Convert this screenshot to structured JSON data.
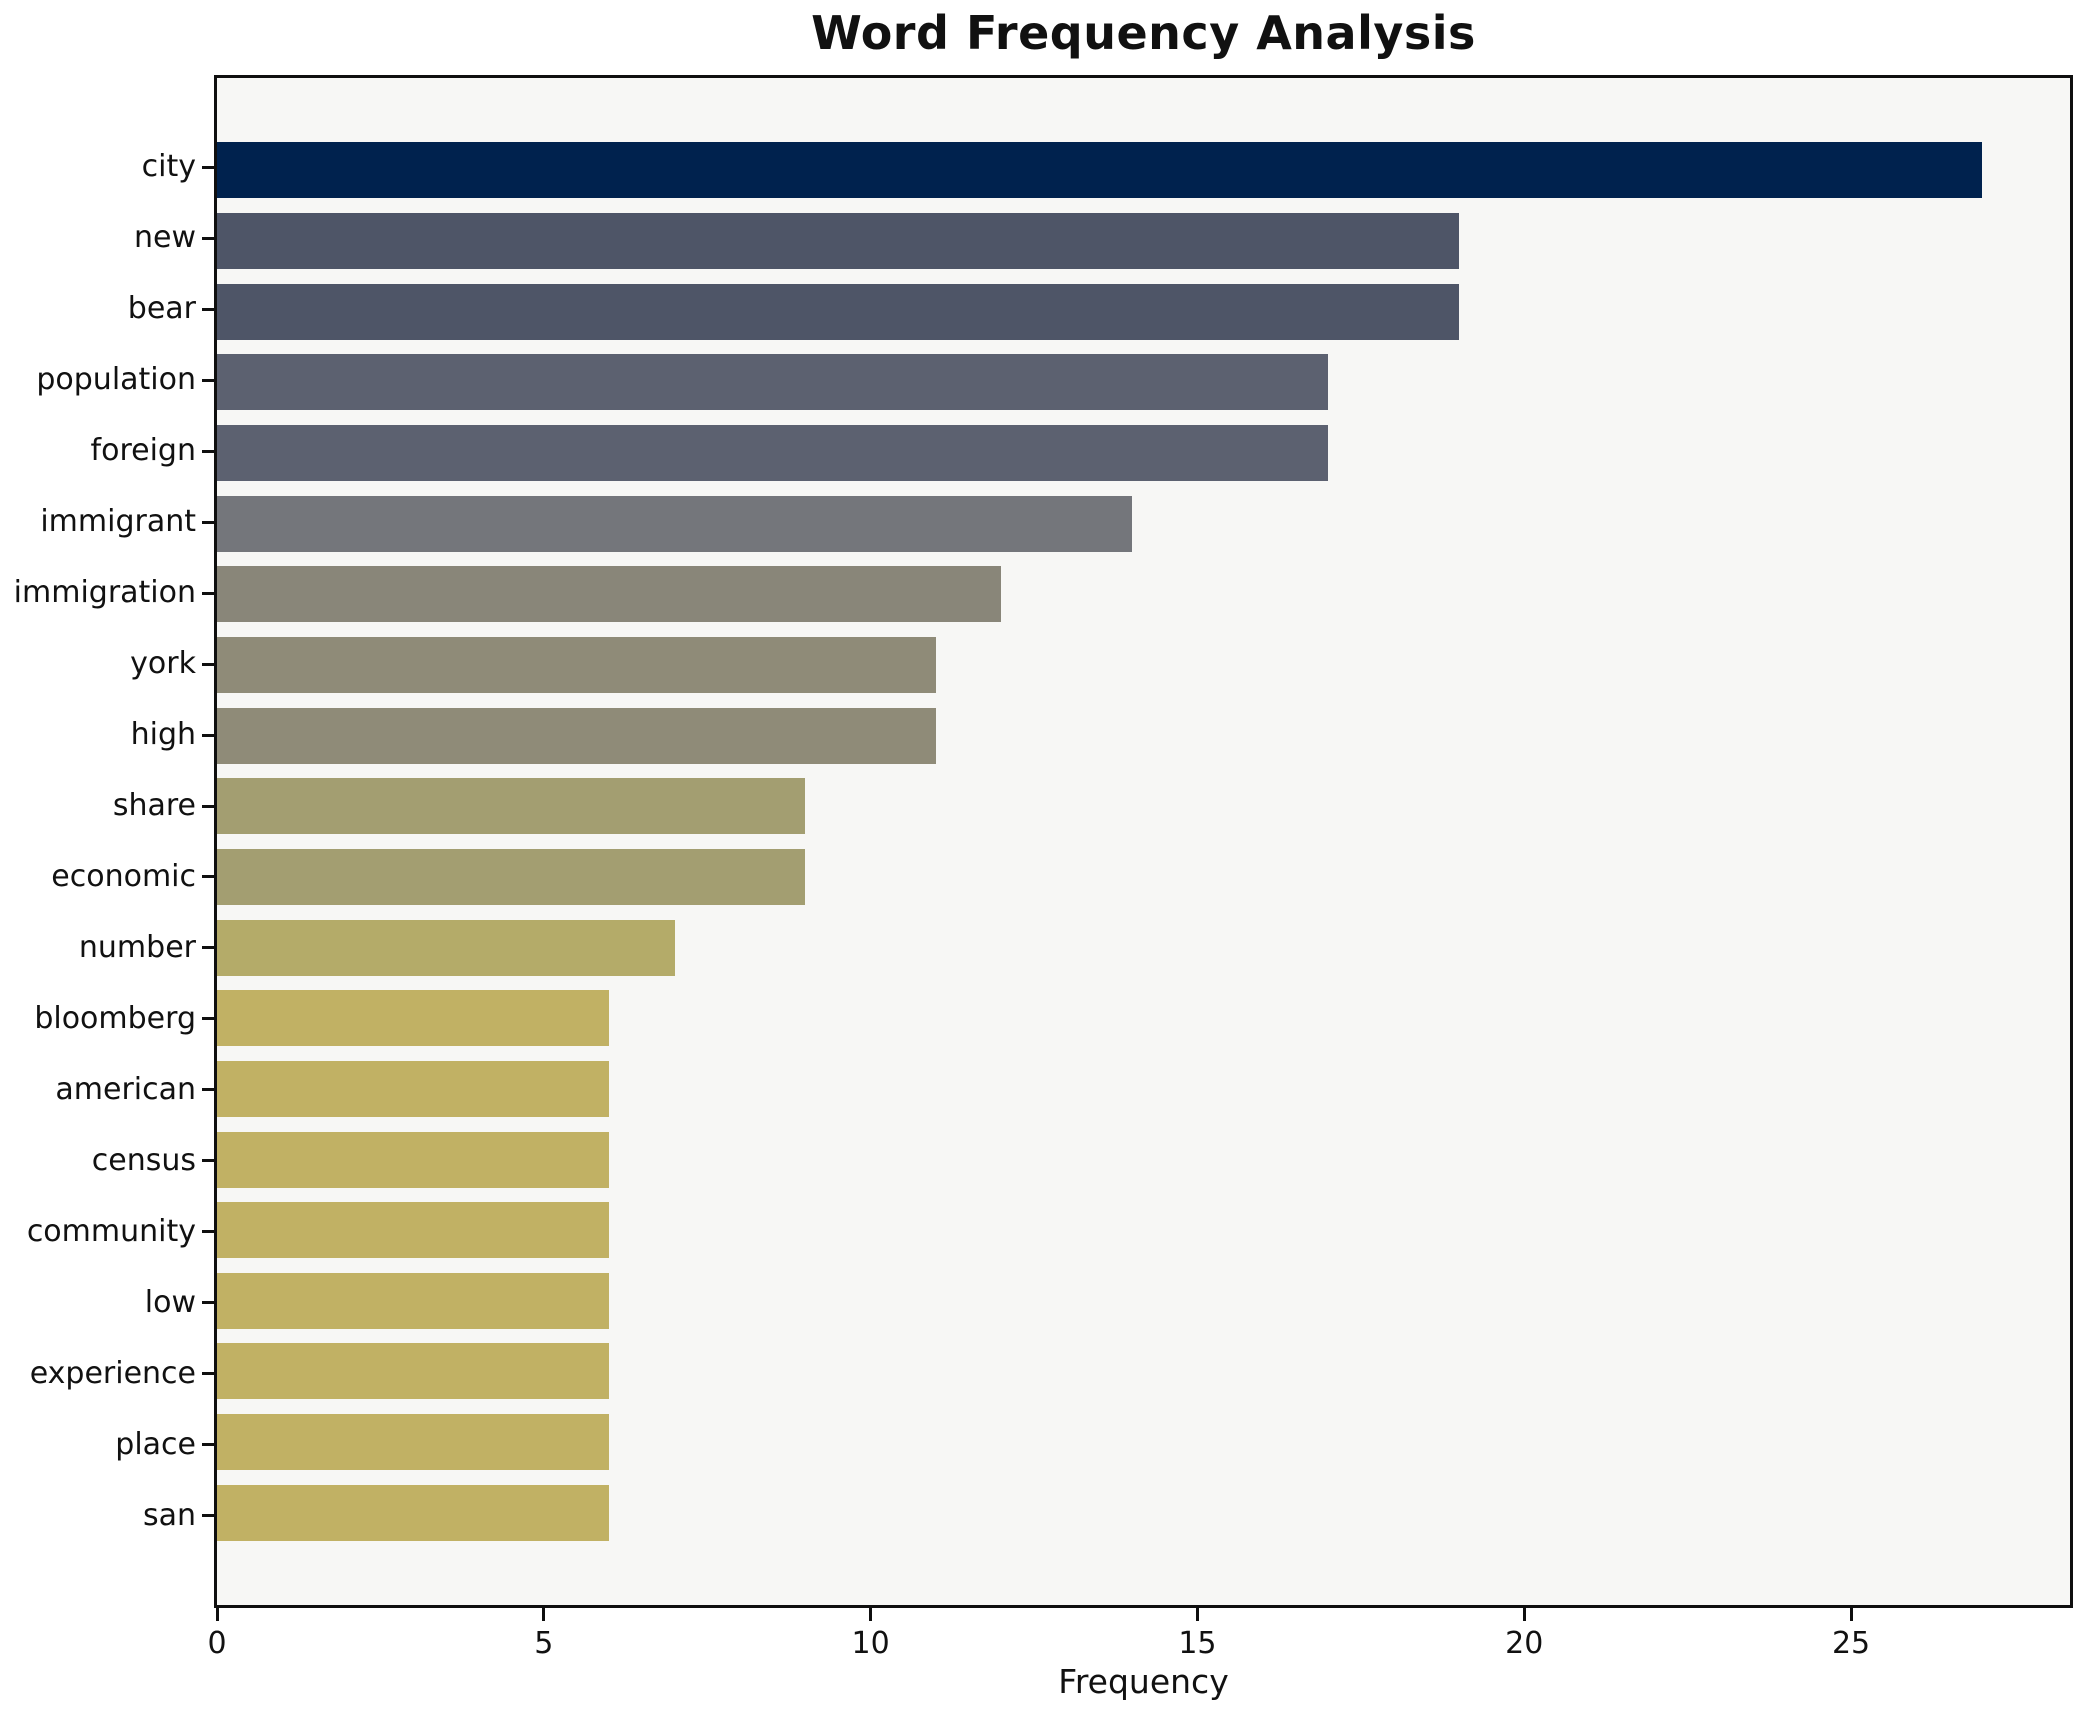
{
  "chart_data": {
    "type": "bar",
    "orientation": "horizontal",
    "title": "Word Frequency Analysis",
    "xlabel": "Frequency",
    "ylabel": "",
    "categories": [
      "city",
      "new",
      "bear",
      "population",
      "foreign",
      "immigrant",
      "immigration",
      "york",
      "high",
      "share",
      "economic",
      "number",
      "bloomberg",
      "american",
      "census",
      "community",
      "low",
      "experience",
      "place",
      "san"
    ],
    "values": [
      27,
      19,
      19,
      17,
      17,
      14,
      12,
      11,
      11,
      9,
      9,
      7,
      6,
      6,
      6,
      6,
      6,
      6,
      6,
      6
    ],
    "bar_colors": [
      "#00224e",
      "#4e5567",
      "#4e5567",
      "#5c6170",
      "#5c6170",
      "#74767b",
      "#898679",
      "#8f8b78",
      "#8f8b78",
      "#a39e71",
      "#a39e71",
      "#b4ab69",
      "#c1b164",
      "#c1b164",
      "#c1b164",
      "#c1b164",
      "#c1b164",
      "#c1b164",
      "#c1b164",
      "#c1b164"
    ],
    "xticks": [
      0,
      5,
      10,
      15,
      20,
      25
    ],
    "xlim": [
      0,
      28.35
    ],
    "grid": false,
    "legend_position": "none",
    "colors": {
      "figure_background": "#ffffff",
      "axes_background": "#f7f7f5",
      "spine": "#0f0f0f",
      "text": "#111111"
    }
  }
}
